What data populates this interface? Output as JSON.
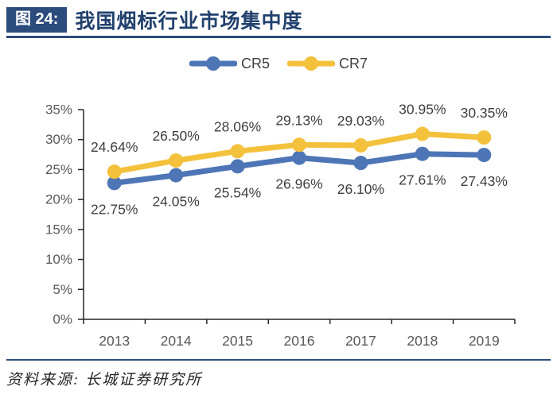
{
  "header": {
    "figure_label": "图 24:",
    "title": "我国烟标行业市场集中度"
  },
  "footer": {
    "source": "资料来源: 长城证券研究所"
  },
  "colors": {
    "navy": "#2B4C7C",
    "cr5_blue": "#4E76B6",
    "cr7_gold": "#F3C13C",
    "axis": "#262626",
    "tick_label": "#595959",
    "data_label": "#3F3F3F"
  },
  "chart_data": {
    "type": "line",
    "title": "我国烟标行业市场集中度",
    "categories": [
      "2013",
      "2014",
      "2015",
      "2016",
      "2017",
      "2018",
      "2019"
    ],
    "series": [
      {
        "name": "CR5",
        "color": "#4E76B6",
        "values": [
          22.75,
          24.05,
          25.54,
          26.96,
          26.1,
          27.61,
          27.43
        ],
        "label_side": "below"
      },
      {
        "name": "CR7",
        "color": "#F3C13C",
        "values": [
          24.64,
          26.5,
          28.06,
          29.13,
          29.03,
          30.95,
          30.35
        ],
        "label_side": "above"
      }
    ],
    "xlabel": "",
    "ylabel": "",
    "ylim": [
      0,
      35
    ],
    "ytick_step": 5,
    "ytick_labels": [
      "0%",
      "5%",
      "10%",
      "15%",
      "20%",
      "25%",
      "30%",
      "35%"
    ],
    "grid": false,
    "legend_position": "top-center",
    "data_label_format": "percent_2dp"
  }
}
